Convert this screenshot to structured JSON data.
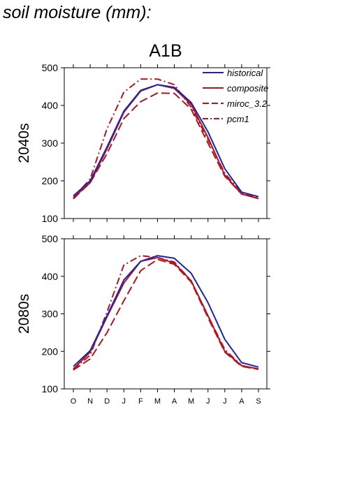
{
  "page_title": "soil moisture (mm):",
  "colors": {
    "historical": "#1f23b4",
    "future": "#b3151d"
  },
  "chart_data": [
    {
      "type": "line",
      "title": "A1B",
      "ylabel": "2040s",
      "xlabel": "",
      "categories": [
        "O",
        "N",
        "D",
        "J",
        "F",
        "M",
        "A",
        "M",
        "J",
        "J",
        "A",
        "S"
      ],
      "ylim": [
        100,
        500
      ],
      "yticks": [
        100,
        200,
        300,
        400,
        500
      ],
      "grid": false,
      "legend": "top-right",
      "series": [
        {
          "name": "historical",
          "style": "solid",
          "color": "#1f23b4",
          "values": [
            160,
            200,
            290,
            385,
            440,
            455,
            448,
            408,
            330,
            232,
            170,
            158
          ]
        },
        {
          "name": "composite",
          "style": "solid",
          "color": "#b3151d",
          "values": [
            155,
            195,
            285,
            382,
            438,
            455,
            445,
            403,
            315,
            215,
            165,
            153
          ]
        },
        {
          "name": "miroc_3.2",
          "style": "dashed",
          "color": "#b3151d",
          "values": [
            152,
            195,
            272,
            365,
            410,
            433,
            432,
            390,
            300,
            212,
            165,
            153
          ]
        },
        {
          "name": "pcm1",
          "style": "dashdot",
          "color": "#b3151d",
          "values": [
            155,
            205,
            338,
            435,
            470,
            470,
            455,
            395,
            310,
            220,
            168,
            155
          ]
        }
      ]
    },
    {
      "type": "line",
      "title": "",
      "ylabel": "2080s",
      "xlabel": "",
      "categories": [
        "O",
        "N",
        "D",
        "J",
        "F",
        "M",
        "A",
        "M",
        "J",
        "J",
        "A",
        "S"
      ],
      "ylim": [
        100,
        500
      ],
      "yticks": [
        100,
        200,
        300,
        400,
        500
      ],
      "grid": false,
      "legend": "",
      "series": [
        {
          "name": "historical",
          "style": "solid",
          "color": "#1f23b4",
          "values": [
            160,
            202,
            295,
            390,
            440,
            455,
            448,
            408,
            330,
            232,
            170,
            158
          ]
        },
        {
          "name": "composite",
          "style": "solid",
          "color": "#b3151d",
          "values": [
            153,
            198,
            292,
            382,
            440,
            450,
            435,
            388,
            295,
            200,
            162,
            153
          ]
        },
        {
          "name": "miroc_3.2",
          "style": "dashed",
          "color": "#b3151d",
          "values": [
            150,
            180,
            250,
            335,
            415,
            445,
            432,
            385,
            290,
            198,
            160,
            152
          ]
        },
        {
          "name": "pcm1",
          "style": "dashdot",
          "color": "#b3151d",
          "values": [
            152,
            190,
            305,
            430,
            455,
            450,
            438,
            388,
            295,
            205,
            162,
            153
          ]
        }
      ]
    }
  ]
}
